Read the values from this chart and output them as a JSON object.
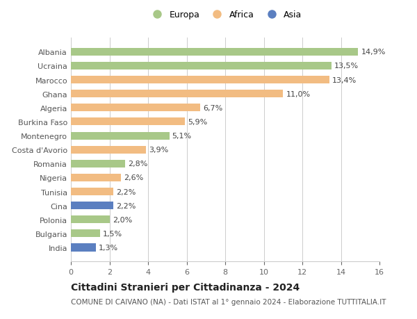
{
  "categories": [
    "Albania",
    "Ucraina",
    "Marocco",
    "Ghana",
    "Algeria",
    "Burkina Faso",
    "Montenegro",
    "Costa d'Avorio",
    "Romania",
    "Nigeria",
    "Tunisia",
    "Cina",
    "Polonia",
    "Bulgaria",
    "India"
  ],
  "values": [
    14.9,
    13.5,
    13.4,
    11.0,
    6.7,
    5.9,
    5.1,
    3.9,
    2.8,
    2.6,
    2.2,
    2.2,
    2.0,
    1.5,
    1.3
  ],
  "labels": [
    "14,9%",
    "13,5%",
    "13,4%",
    "11,0%",
    "6,7%",
    "5,9%",
    "5,1%",
    "3,9%",
    "2,8%",
    "2,6%",
    "2,2%",
    "2,2%",
    "2,0%",
    "1,5%",
    "1,3%"
  ],
  "continents": [
    "Europa",
    "Europa",
    "Africa",
    "Africa",
    "Africa",
    "Africa",
    "Europa",
    "Africa",
    "Europa",
    "Africa",
    "Africa",
    "Asia",
    "Europa",
    "Europa",
    "Asia"
  ],
  "colors": {
    "Europa": "#a8c888",
    "Africa": "#f2bc82",
    "Asia": "#5b7fc0"
  },
  "legend_labels": [
    "Europa",
    "Africa",
    "Asia"
  ],
  "xlim": [
    0,
    16
  ],
  "xticks": [
    0,
    2,
    4,
    6,
    8,
    10,
    12,
    14,
    16
  ],
  "title": "Cittadini Stranieri per Cittadinanza - 2024",
  "subtitle": "COMUNE DI CAIVANO (NA) - Dati ISTAT al 1° gennaio 2024 - Elaborazione TUTTITALIA.IT",
  "background_color": "#ffffff",
  "grid_color": "#cccccc",
  "bar_height": 0.55,
  "label_fontsize": 8.0,
  "tick_fontsize": 8.0,
  "title_fontsize": 10,
  "subtitle_fontsize": 7.5
}
